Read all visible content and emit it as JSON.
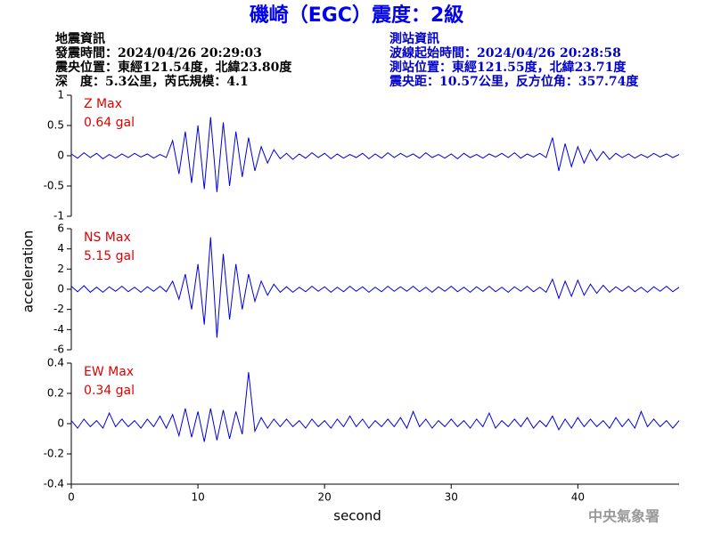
{
  "header": {
    "title": "磯崎（EGC）震度：2級",
    "left": [
      "地震資訊",
      "發震時間：2024/04/26 20:29:03",
      "震央位置：東經121.54度，北緯23.80度",
      "深　度：5.3公里，芮氏規模：4.1"
    ],
    "right": [
      "測站資訊",
      "波線起始時間：2024/04/26 20:28:58",
      "測站位置：東經121.55度，北緯23.71度",
      "震央距：10.57公里，反方位角：357.74度"
    ],
    "footer": "中央氣象署"
  },
  "chart_data": [
    {
      "type": "line",
      "annotations": [
        "Z Max",
        "0.64 gal"
      ],
      "xlim": [
        0,
        48
      ],
      "ylim": [
        -1,
        1
      ],
      "yticks": [
        1,
        0.5,
        0,
        -0.5,
        -1
      ],
      "x": [
        0,
        0.5,
        1,
        1.5,
        2,
        2.5,
        3,
        3.5,
        4,
        4.5,
        5,
        5.5,
        6,
        6.5,
        7,
        7.5,
        8,
        8.5,
        9,
        9.5,
        10,
        10.5,
        11,
        11.5,
        12,
        12.5,
        13,
        13.5,
        14,
        14.5,
        15,
        15.5,
        16,
        16.5,
        17,
        17.5,
        18,
        18.5,
        19,
        19.5,
        20,
        20.5,
        21,
        21.5,
        22,
        22.5,
        23,
        23.5,
        24,
        24.5,
        25,
        25.5,
        26,
        26.5,
        27,
        27.5,
        28,
        28.5,
        29,
        29.5,
        30,
        30.5,
        31,
        31.5,
        32,
        32.5,
        33,
        33.5,
        34,
        34.5,
        35,
        35.5,
        36,
        36.5,
        37,
        37.5,
        38,
        38.5,
        39,
        39.5,
        40,
        40.5,
        41,
        41.5,
        42,
        42.5,
        43,
        43.5,
        44,
        44.5,
        45,
        45.5,
        46,
        46.5,
        47,
        47.5,
        48
      ],
      "series": [
        {
          "color": "#0000dd",
          "values": [
            0.03,
            -0.04,
            0.05,
            -0.03,
            0.04,
            -0.05,
            0.02,
            -0.04,
            0.03,
            -0.03,
            0.04,
            -0.02,
            0.03,
            -0.04,
            0.02,
            -0.03,
            0.25,
            -0.3,
            0.4,
            -0.45,
            0.5,
            -0.55,
            0.64,
            -0.6,
            0.55,
            -0.5,
            0.4,
            -0.35,
            0.3,
            -0.25,
            0.15,
            -0.12,
            0.1,
            -0.05,
            0.04,
            -0.06,
            0.03,
            -0.04,
            0.05,
            -0.03,
            0.04,
            -0.05,
            0.03,
            -0.04,
            0.02,
            -0.03,
            0.04,
            -0.05,
            0.03,
            -0.04,
            0.05,
            -0.03,
            0.04,
            -0.02,
            0.03,
            -0.04,
            0.05,
            -0.03,
            0.02,
            -0.04,
            0.03,
            -0.05,
            0.04,
            -0.03,
            0.02,
            -0.04,
            0.03,
            -0.02,
            0.04,
            -0.03,
            0.05,
            -0.04,
            0.03,
            -0.02,
            0.04,
            -0.03,
            0.3,
            -0.25,
            0.2,
            -0.18,
            0.15,
            -0.12,
            0.1,
            -0.08,
            0.07,
            -0.06,
            0.04,
            -0.03,
            0.03,
            -0.04,
            0.02,
            -0.03,
            0.04,
            -0.02,
            0.03,
            -0.03,
            0.02
          ]
        }
      ]
    },
    {
      "type": "line",
      "annotations": [
        "NS Max",
        "5.15 gal"
      ],
      "ylabel": "acceleration",
      "xlim": [
        0,
        48
      ],
      "ylim": [
        -6,
        6
      ],
      "yticks": [
        6,
        4,
        2,
        0,
        -2,
        -4,
        -6
      ],
      "x": [
        0,
        0.5,
        1,
        1.5,
        2,
        2.5,
        3,
        3.5,
        4,
        4.5,
        5,
        5.5,
        6,
        6.5,
        7,
        7.5,
        8,
        8.5,
        9,
        9.5,
        10,
        10.5,
        11,
        11.5,
        12,
        12.5,
        13,
        13.5,
        14,
        14.5,
        15,
        15.5,
        16,
        16.5,
        17,
        17.5,
        18,
        18.5,
        19,
        19.5,
        20,
        20.5,
        21,
        21.5,
        22,
        22.5,
        23,
        23.5,
        24,
        24.5,
        25,
        25.5,
        26,
        26.5,
        27,
        27.5,
        28,
        28.5,
        29,
        29.5,
        30,
        30.5,
        31,
        31.5,
        32,
        32.5,
        33,
        33.5,
        34,
        34.5,
        35,
        35.5,
        36,
        36.5,
        37,
        37.5,
        38,
        38.5,
        39,
        39.5,
        40,
        40.5,
        41,
        41.5,
        42,
        42.5,
        43,
        43.5,
        44,
        44.5,
        45,
        45.5,
        46,
        46.5,
        47,
        47.5,
        48
      ],
      "series": [
        {
          "color": "#0000dd",
          "values": [
            0.3,
            -0.25,
            0.35,
            -0.3,
            0.2,
            -0.3,
            0.25,
            -0.2,
            0.3,
            -0.25,
            0.2,
            -0.3,
            0.25,
            -0.2,
            0.3,
            -0.25,
            0.8,
            -1,
            1.5,
            -2,
            2.5,
            -3.5,
            5.15,
            -4.8,
            3.5,
            -3,
            2.5,
            -2,
            1.5,
            -1.2,
            0.8,
            -0.6,
            0.5,
            -0.3,
            0.25,
            -0.3,
            0.2,
            -0.25,
            0.3,
            -0.2,
            0.25,
            -0.3,
            0.2,
            -0.25,
            0.3,
            -0.2,
            0.25,
            -0.3,
            0.2,
            -0.25,
            0.3,
            -0.2,
            0.25,
            -0.2,
            0.3,
            -0.25,
            0.2,
            -0.3,
            0.25,
            -0.2,
            0.3,
            -0.25,
            0.2,
            -0.3,
            0.25,
            -0.2,
            0.3,
            -0.25,
            0.2,
            -0.3,
            0.25,
            -0.2,
            0.3,
            -0.25,
            0.2,
            -0.3,
            1,
            -0.9,
            0.8,
            -0.7,
            0.9,
            -0.6,
            0.5,
            -0.4,
            0.4,
            -0.3,
            0.25,
            -0.2,
            0.3,
            -0.25,
            0.2,
            -0.3,
            0.25,
            -0.2,
            0.3,
            -0.25,
            0.2
          ]
        }
      ]
    },
    {
      "type": "line",
      "annotations": [
        "EW Max",
        "0.34 gal"
      ],
      "xlabel": "second",
      "xlim": [
        0,
        48
      ],
      "ylim": [
        -0.4,
        0.4
      ],
      "yticks": [
        0.4,
        0.2,
        0,
        -0.2,
        -0.4
      ],
      "xticks": [
        0,
        10,
        20,
        30,
        40
      ],
      "x": [
        0,
        0.5,
        1,
        1.5,
        2,
        2.5,
        3,
        3.5,
        4,
        4.5,
        5,
        5.5,
        6,
        6.5,
        7,
        7.5,
        8,
        8.5,
        9,
        9.5,
        10,
        10.5,
        11,
        11.5,
        12,
        12.5,
        13,
        13.5,
        14,
        14.5,
        15,
        15.5,
        16,
        16.5,
        17,
        17.5,
        18,
        18.5,
        19,
        19.5,
        20,
        20.5,
        21,
        21.5,
        22,
        22.5,
        23,
        23.5,
        24,
        24.5,
        25,
        25.5,
        26,
        26.5,
        27,
        27.5,
        28,
        28.5,
        29,
        29.5,
        30,
        30.5,
        31,
        31.5,
        32,
        32.5,
        33,
        33.5,
        34,
        34.5,
        35,
        35.5,
        36,
        36.5,
        37,
        37.5,
        38,
        38.5,
        39,
        39.5,
        40,
        40.5,
        41,
        41.5,
        42,
        42.5,
        43,
        43.5,
        44,
        44.5,
        45,
        45.5,
        46,
        46.5,
        47,
        47.5,
        48
      ],
      "series": [
        {
          "color": "#0000dd",
          "values": [
            0.02,
            -0.03,
            0.03,
            -0.02,
            0.02,
            -0.03,
            0.07,
            -0.02,
            0.03,
            -0.02,
            0.02,
            -0.03,
            0.03,
            -0.02,
            0.05,
            -0.03,
            0.06,
            -0.08,
            0.1,
            -0.09,
            0.08,
            -0.12,
            0.1,
            -0.11,
            0.09,
            -0.1,
            0.08,
            -0.07,
            0.34,
            -0.05,
            0.04,
            -0.03,
            0.03,
            -0.02,
            0.03,
            -0.02,
            0.02,
            -0.03,
            0.03,
            -0.02,
            0.02,
            -0.03,
            0.03,
            -0.02,
            0.05,
            -0.02,
            0.03,
            -0.03,
            0.02,
            -0.02,
            0.03,
            -0.02,
            0.04,
            -0.03,
            0.08,
            -0.02,
            0.03,
            -0.03,
            0.02,
            -0.02,
            0.03,
            -0.02,
            0.02,
            -0.03,
            0.03,
            -0.02,
            0.07,
            -0.03,
            0.02,
            -0.02,
            0.03,
            -0.02,
            0.04,
            -0.03,
            0.02,
            -0.02,
            0.05,
            -0.04,
            0.03,
            -0.03,
            0.04,
            -0.02,
            0.03,
            -0.02,
            0.02,
            -0.03,
            0.04,
            -0.02,
            0.03,
            -0.03,
            0.08,
            -0.02,
            0.03,
            -0.02,
            0.02,
            -0.03,
            0.02
          ]
        }
      ]
    }
  ]
}
